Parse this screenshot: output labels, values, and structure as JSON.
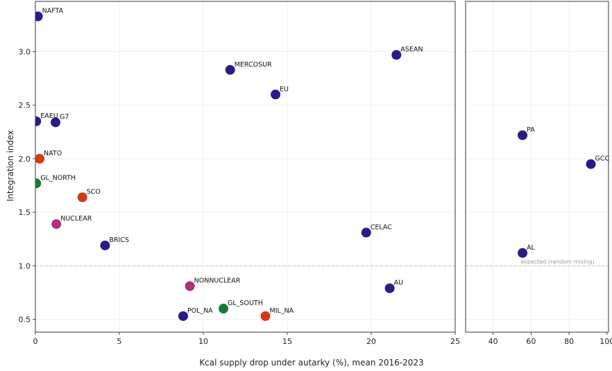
{
  "chart_data": {
    "type": "scatter",
    "title": "",
    "xlabel": "Kcal supply drop under autarky (%), mean 2016-2023",
    "ylabel": "Integration index",
    "ylim": [
      0.38,
      3.47
    ],
    "reference_line": {
      "y": 1.0,
      "label": "expected (random mixing)",
      "style": "dashed",
      "color": "#bbbbbb"
    },
    "grid": true,
    "panels": [
      {
        "name": "left",
        "xlim": [
          0,
          25
        ],
        "xticks": [
          0,
          5,
          10,
          15,
          20,
          25
        ]
      },
      {
        "name": "right",
        "xlim": [
          25.5,
          100.8
        ],
        "xticks": [
          40,
          60,
          80,
          100
        ]
      }
    ],
    "yticks": [
      0.5,
      1.0,
      1.5,
      2.0,
      2.5,
      3.0
    ],
    "colors": {
      "purple": "#2e1a87",
      "red": "#d13b14",
      "green": "#157a35",
      "magenta": "#b0307f"
    },
    "points": [
      {
        "label": "NAFTA",
        "x": 0.15,
        "y": 3.33,
        "color": "#2e1a87",
        "panel": 0
      },
      {
        "label": "ASEAN",
        "x": 21.5,
        "y": 2.97,
        "color": "#2e1a87",
        "panel": 0
      },
      {
        "label": "MERCOSUR",
        "x": 11.6,
        "y": 2.83,
        "color": "#2e1a87",
        "panel": 0
      },
      {
        "label": "EU",
        "x": 14.3,
        "y": 2.6,
        "color": "#2e1a87",
        "panel": 0
      },
      {
        "label": "EAEU",
        "x": 0.05,
        "y": 2.35,
        "color": "#2e1a87",
        "panel": 0
      },
      {
        "label": "G7",
        "x": 1.2,
        "y": 2.34,
        "color": "#2e1a87",
        "panel": 0
      },
      {
        "label": "NATO",
        "x": 0.25,
        "y": 2.0,
        "color": "#d13b14",
        "panel": 0
      },
      {
        "label": "GL_NORTH",
        "x": 0.05,
        "y": 1.77,
        "color": "#157a35",
        "panel": 0
      },
      {
        "label": "SCO",
        "x": 2.8,
        "y": 1.64,
        "color": "#d13b14",
        "panel": 0
      },
      {
        "label": "NUCLEAR",
        "x": 1.25,
        "y": 1.39,
        "color": "#b0307f",
        "panel": 0
      },
      {
        "label": "BRICS",
        "x": 4.15,
        "y": 1.19,
        "color": "#2e1a87",
        "panel": 0
      },
      {
        "label": "CELAC",
        "x": 19.7,
        "y": 1.31,
        "color": "#2e1a87",
        "panel": 0
      },
      {
        "label": "NONNUCLEAR",
        "x": 9.2,
        "y": 0.81,
        "color": "#b0307f",
        "panel": 0
      },
      {
        "label": "AU",
        "x": 21.1,
        "y": 0.79,
        "color": "#2e1a87",
        "panel": 0
      },
      {
        "label": "GL_SOUTH",
        "x": 11.2,
        "y": 0.6,
        "color": "#157a35",
        "panel": 0
      },
      {
        "label": "POL_NA",
        "x": 8.8,
        "y": 0.53,
        "color": "#2e1a87",
        "panel": 0
      },
      {
        "label": "MIL_NA",
        "x": 13.7,
        "y": 0.53,
        "color": "#d13b14",
        "panel": 0
      },
      {
        "label": "PA",
        "x": 55.5,
        "y": 2.22,
        "color": "#2e1a87",
        "panel": 1
      },
      {
        "label": "GCC",
        "x": 91.5,
        "y": 1.95,
        "color": "#2e1a87",
        "panel": 1
      },
      {
        "label": "AL",
        "x": 55.5,
        "y": 1.12,
        "color": "#2e1a87",
        "panel": 1
      }
    ]
  }
}
